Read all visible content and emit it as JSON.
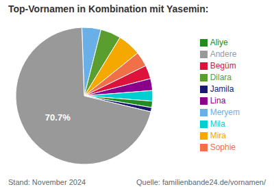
{
  "chart_data": {
    "type": "pie",
    "title": "Top-Vornamen in Kombination mit Yasemin:",
    "categories": [
      "Meryem",
      "Dilara",
      "Mira",
      "Sophie",
      "Begüm",
      "Lina",
      "Mila",
      "Aliye",
      "Jamila",
      "Andere"
    ],
    "values": [
      4.5,
      4.8,
      5.5,
      3.5,
      3.2,
      2.8,
      2.5,
      1.5,
      1.0,
      70.7
    ],
    "colors": [
      "#6ab0e8",
      "#5a9e2f",
      "#f5a800",
      "#f07048",
      "#dc143c",
      "#8b008b",
      "#00ced1",
      "#228b22",
      "#191970",
      "#999999"
    ],
    "value_labels": [
      null,
      null,
      null,
      null,
      null,
      null,
      null,
      null,
      null,
      "70.7%"
    ],
    "legend": "right",
    "annotations": [
      "Stand: November 2024",
      "Quelle: familienbande24.de/vornamen/"
    ]
  }
}
